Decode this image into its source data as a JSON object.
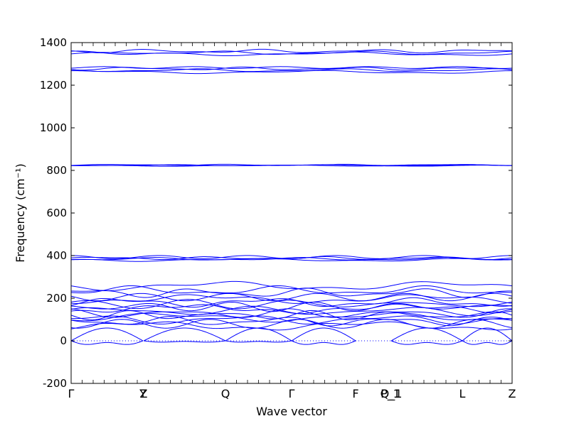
{
  "chart_data": {
    "type": "line",
    "title": "",
    "xlabel": "Wave vector",
    "ylabel": "Frequency (cm⁻¹)",
    "ylim": [
      -200,
      1400
    ],
    "yticks": [
      -200,
      0,
      200,
      400,
      600,
      800,
      1000,
      1200,
      1400
    ],
    "grid": false,
    "legend": "none",
    "line_color": "#0000ff",
    "zero_line": {
      "value": 0,
      "style": "dotted"
    },
    "x_range": [
      0,
      1
    ],
    "high_symmetry_points": [
      {
        "label": "Γ",
        "x": 0.0
      },
      {
        "label": "Y",
        "x": 0.1629
      },
      {
        "label": "Z",
        "x": 0.1645
      },
      {
        "label": "Q",
        "x": 0.35
      },
      {
        "label": "Γ",
        "x": 0.5
      },
      {
        "label": "F",
        "x": 0.6452
      },
      {
        "label": "P_1",
        "x": 0.7242
      },
      {
        "label": "Q_1",
        "x": 0.7258
      },
      {
        "label": "L",
        "x": 0.8871
      },
      {
        "label": "Z",
        "x": 1.0
      }
    ],
    "band_groups": [
      {
        "name": "optical-1350",
        "base": [
          1347,
          1352,
          1360
        ],
        "amp": 6
      },
      {
        "name": "optical-1275",
        "base": [
          1262,
          1270,
          1278,
          1283
        ],
        "amp": 5
      },
      {
        "name": "optical-825",
        "base": [
          822,
          824,
          826
        ],
        "amp": 2
      },
      {
        "name": "optical-385",
        "base": [
          380,
          384,
          388,
          393
        ],
        "amp": 5
      },
      {
        "name": "low",
        "base": [
          258,
          236,
          225,
          205,
          196,
          180,
          172,
          160,
          150,
          140,
          128,
          120,
          110,
          100,
          92,
          80,
          70
        ],
        "amp": 15
      }
    ],
    "acoustic_features": [
      {
        "segment": "Γ-Y",
        "min_freq": -40,
        "max_freq": 60
      },
      {
        "segment": "Z-Q",
        "min_freq": -15,
        "max_freq": 60
      },
      {
        "segment": "Q-Γ",
        "min_freq": -15,
        "max_freq": 60
      },
      {
        "segment": "Γ-F",
        "min_freq": -40,
        "max_freq": 60
      },
      {
        "segment": "Q_1-L",
        "min_freq": -40,
        "max_freq": 60
      }
    ]
  }
}
